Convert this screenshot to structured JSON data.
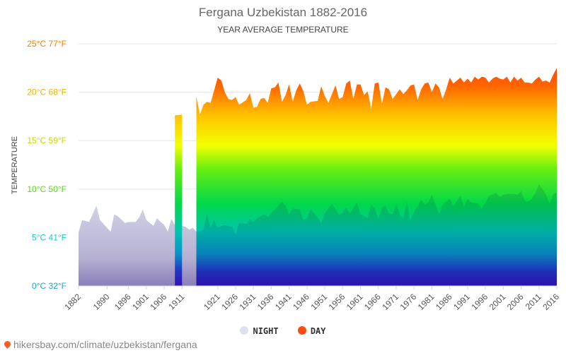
{
  "title": "Fergana Uzbekistan 1882-2016",
  "subtitle": "YEAR AVERAGE TEMPERATURE",
  "footer_text": "hikersbay.com/climate/uzbekistan/fergana",
  "colors": {
    "night": "#dde1ee",
    "day": "#ff4b12",
    "footer_pin": "#ff5a1f"
  },
  "chart_data": {
    "type": "area",
    "title": "Fergana Uzbekistan 1882-2016",
    "subtitle": "YEAR AVERAGE TEMPERATURE",
    "ylabel": "TEMPERATURE",
    "ylim": [
      0,
      25
    ],
    "xlim": [
      1882,
      2016
    ],
    "grid": true,
    "legend_position": "bottom",
    "y_ticks": [
      {
        "value": 0,
        "label": "0°C 32°F",
        "color": "#22a0d8"
      },
      {
        "value": 5,
        "label": "5°C 41°F",
        "color": "#18c8c8"
      },
      {
        "value": 10,
        "label": "10°C 50°F",
        "color": "#55d61a"
      },
      {
        "value": 15,
        "label": "15°C 59°F",
        "color": "#c6d800"
      },
      {
        "value": 20,
        "label": "20°C 68°F",
        "color": "#f0b400"
      },
      {
        "value": 25,
        "label": "25°C 77°F",
        "color": "#f08000"
      }
    ],
    "x_ticks": [
      "1882",
      "1890",
      "1896",
      "1901",
      "1906",
      "1911",
      "1921",
      "1926",
      "1931",
      "1936",
      "1941",
      "1946",
      "1951",
      "1956",
      "1961",
      "1966",
      "1971",
      "1976",
      "1981",
      "1986",
      "1991",
      "1996",
      "2001",
      "2006",
      "2011",
      "2016"
    ],
    "series": [
      {
        "name": "NIGHT",
        "color": "#dde1ee",
        "points": [
          [
            1882,
            5.5
          ],
          [
            1883,
            6.8
          ],
          [
            1885,
            6.6
          ],
          [
            1887,
            8.3
          ],
          [
            1888,
            6.8
          ],
          [
            1890,
            6.0
          ],
          [
            1891,
            5.6
          ],
          [
            1892,
            7.4
          ],
          [
            1893,
            7.2
          ],
          [
            1895,
            6.5
          ],
          [
            1896,
            6.6
          ],
          [
            1898,
            6.6
          ],
          [
            1899,
            7.1
          ],
          [
            1900,
            7.9
          ],
          [
            1901,
            6.8
          ],
          [
            1902,
            6.5
          ],
          [
            1903,
            6.2
          ],
          [
            1904,
            7.0
          ],
          [
            1905,
            6.6
          ],
          [
            1906,
            6.3
          ],
          [
            1907,
            5.6
          ],
          [
            1908,
            6.9
          ],
          [
            1909,
            6.3
          ],
          [
            1910,
            6.2
          ],
          [
            1911,
            6.2
          ],
          [
            1912,
            6.1
          ],
          [
            1913,
            5.8
          ],
          [
            1914,
            6.0
          ],
          [
            1915,
            5.6
          ]
        ]
      },
      {
        "name": "NIGHT",
        "color": "#dde1ee",
        "points": [
          [
            1915,
            5.6
          ],
          [
            1916,
            5.6
          ],
          [
            1917,
            5.8
          ],
          [
            1918,
            7.4
          ],
          [
            1919,
            6.0
          ],
          [
            1920,
            6.8
          ],
          [
            1921,
            6.0
          ],
          [
            1922,
            6.2
          ],
          [
            1923,
            6.3
          ],
          [
            1925,
            6.1
          ],
          [
            1926,
            5.3
          ],
          [
            1927,
            6.5
          ],
          [
            1929,
            6.4
          ],
          [
            1930,
            6.9
          ],
          [
            1931,
            6.6
          ],
          [
            1932,
            7.0
          ],
          [
            1934,
            7.4
          ],
          [
            1935,
            7.1
          ],
          [
            1937,
            7.9
          ],
          [
            1939,
            8.7
          ],
          [
            1940,
            8.3
          ],
          [
            1941,
            7.4
          ],
          [
            1942,
            8.0
          ],
          [
            1944,
            7.9
          ],
          [
            1945,
            6.8
          ],
          [
            1946,
            7.0
          ],
          [
            1947,
            7.9
          ],
          [
            1949,
            7.1
          ],
          [
            1950,
            6.5
          ],
          [
            1951,
            7.5
          ],
          [
            1953,
            8.5
          ],
          [
            1955,
            7.3
          ],
          [
            1956,
            7.6
          ],
          [
            1957,
            8.1
          ],
          [
            1958,
            7.5
          ],
          [
            1960,
            8.6
          ],
          [
            1961,
            7.4
          ],
          [
            1963,
            7.0
          ],
          [
            1964,
            8.4
          ],
          [
            1965,
            8.0
          ],
          [
            1966,
            6.9
          ],
          [
            1967,
            8.1
          ],
          [
            1968,
            8.3
          ],
          [
            1969,
            7.5
          ],
          [
            1970,
            7.4
          ],
          [
            1971,
            8.5
          ],
          [
            1972,
            7.4
          ],
          [
            1973,
            7.0
          ],
          [
            1974,
            8.7
          ],
          [
            1975,
            6.7
          ],
          [
            1976,
            7.7
          ],
          [
            1977,
            8.2
          ],
          [
            1978,
            8.9
          ],
          [
            1979,
            8.4
          ],
          [
            1980,
            8.6
          ],
          [
            1981,
            9.4
          ],
          [
            1982,
            8.4
          ],
          [
            1983,
            7.4
          ],
          [
            1984,
            8.4
          ],
          [
            1986,
            9.0
          ],
          [
            1987,
            8.2
          ],
          [
            1989,
            9.3
          ],
          [
            1990,
            8.2
          ],
          [
            1991,
            9.0
          ],
          [
            1992,
            8.6
          ],
          [
            1994,
            8.5
          ],
          [
            1995,
            8.0
          ],
          [
            1996,
            8.6
          ],
          [
            1997,
            9.3
          ],
          [
            1999,
            9.6
          ],
          [
            2000,
            9.2
          ],
          [
            2001,
            9.4
          ],
          [
            2002,
            9.5
          ],
          [
            2003,
            9.5
          ],
          [
            2004,
            9.5
          ],
          [
            2005,
            9.4
          ],
          [
            2006,
            9.8
          ],
          [
            2007,
            8.8
          ],
          [
            2008,
            8.7
          ],
          [
            2009,
            9.0
          ],
          [
            2010,
            9.6
          ],
          [
            2011,
            10.5
          ],
          [
            2012,
            10.0
          ],
          [
            2013,
            9.4
          ],
          [
            2014,
            8.5
          ],
          [
            2015,
            9.5
          ],
          [
            2016,
            9.6
          ]
        ]
      },
      {
        "name": "DAY",
        "color": "#ff4b12",
        "points": [
          [
            1909,
            17.6
          ],
          [
            1911,
            17.7
          ]
        ]
      },
      {
        "name": "DAY",
        "color": "#ff4b12",
        "points": [
          [
            1915,
            19.5
          ],
          [
            1916,
            17.7
          ],
          [
            1917,
            18.7
          ],
          [
            1918,
            19.0
          ],
          [
            1919,
            18.9
          ],
          [
            1920,
            20.2
          ],
          [
            1921,
            21.5
          ],
          [
            1922,
            21.2
          ],
          [
            1923,
            20.0
          ],
          [
            1924,
            19.3
          ],
          [
            1925,
            19.2
          ],
          [
            1926,
            19.5
          ],
          [
            1927,
            18.7
          ],
          [
            1929,
            19.2
          ],
          [
            1930,
            19.9
          ],
          [
            1931,
            18.4
          ],
          [
            1932,
            18.5
          ],
          [
            1933,
            19.3
          ],
          [
            1934,
            19.4
          ],
          [
            1935,
            18.9
          ],
          [
            1936,
            20.4
          ],
          [
            1937,
            20.5
          ],
          [
            1938,
            21.0
          ],
          [
            1939,
            19.0
          ],
          [
            1940,
            19.7
          ],
          [
            1941,
            20.8
          ],
          [
            1942,
            19.0
          ],
          [
            1943,
            20.2
          ],
          [
            1944,
            20.9
          ],
          [
            1945,
            20.1
          ],
          [
            1946,
            18.7
          ],
          [
            1947,
            19.0
          ],
          [
            1949,
            19.1
          ],
          [
            1950,
            20.6
          ],
          [
            1951,
            19.6
          ],
          [
            1952,
            18.9
          ],
          [
            1954,
            20.7
          ],
          [
            1955,
            19.3
          ],
          [
            1956,
            19.5
          ],
          [
            1957,
            20.9
          ],
          [
            1958,
            21.2
          ],
          [
            1959,
            19.3
          ],
          [
            1960,
            20.8
          ],
          [
            1961,
            20.8
          ],
          [
            1962,
            19.7
          ],
          [
            1963,
            20.1
          ],
          [
            1964,
            18.3
          ],
          [
            1965,
            20.9
          ],
          [
            1966,
            21.0
          ],
          [
            1967,
            18.8
          ],
          [
            1968,
            20.5
          ],
          [
            1969,
            20.3
          ],
          [
            1970,
            19.3
          ],
          [
            1971,
            19.8
          ],
          [
            1972,
            20.3
          ],
          [
            1973,
            19.8
          ],
          [
            1974,
            20.2
          ],
          [
            1975,
            20.7
          ],
          [
            1976,
            20.8
          ],
          [
            1977,
            19.2
          ],
          [
            1978,
            20.3
          ],
          [
            1979,
            20.9
          ],
          [
            1980,
            21.0
          ],
          [
            1981,
            20.0
          ],
          [
            1982,
            20.9
          ],
          [
            1983,
            20.5
          ],
          [
            1984,
            19.3
          ],
          [
            1985,
            20.3
          ],
          [
            1986,
            21.5
          ],
          [
            1987,
            20.9
          ],
          [
            1988,
            21.2
          ],
          [
            1989,
            21.5
          ],
          [
            1990,
            21.0
          ],
          [
            1991,
            21.4
          ],
          [
            1992,
            21.0
          ],
          [
            1993,
            21.6
          ],
          [
            1994,
            21.3
          ],
          [
            1995,
            21.6
          ],
          [
            1996,
            21.5
          ],
          [
            1997,
            21.0
          ],
          [
            1998,
            21.4
          ],
          [
            1999,
            21.6
          ],
          [
            2000,
            21.4
          ],
          [
            2001,
            21.3
          ],
          [
            2002,
            21.6
          ],
          [
            2003,
            21.0
          ],
          [
            2004,
            21.6
          ],
          [
            2005,
            21.2
          ],
          [
            2006,
            21.5
          ],
          [
            2007,
            21.0
          ],
          [
            2008,
            21.0
          ],
          [
            2009,
            20.9
          ],
          [
            2010,
            21.3
          ],
          [
            2011,
            21.6
          ],
          [
            2012,
            21.1
          ],
          [
            2013,
            21.2
          ],
          [
            2014,
            21.0
          ],
          [
            2015,
            21.8
          ],
          [
            2016,
            22.5
          ]
        ]
      }
    ]
  },
  "legend": [
    {
      "label": "NIGHT",
      "color": "#dde1ee"
    },
    {
      "label": "DAY",
      "color": "#ff4b12"
    }
  ]
}
